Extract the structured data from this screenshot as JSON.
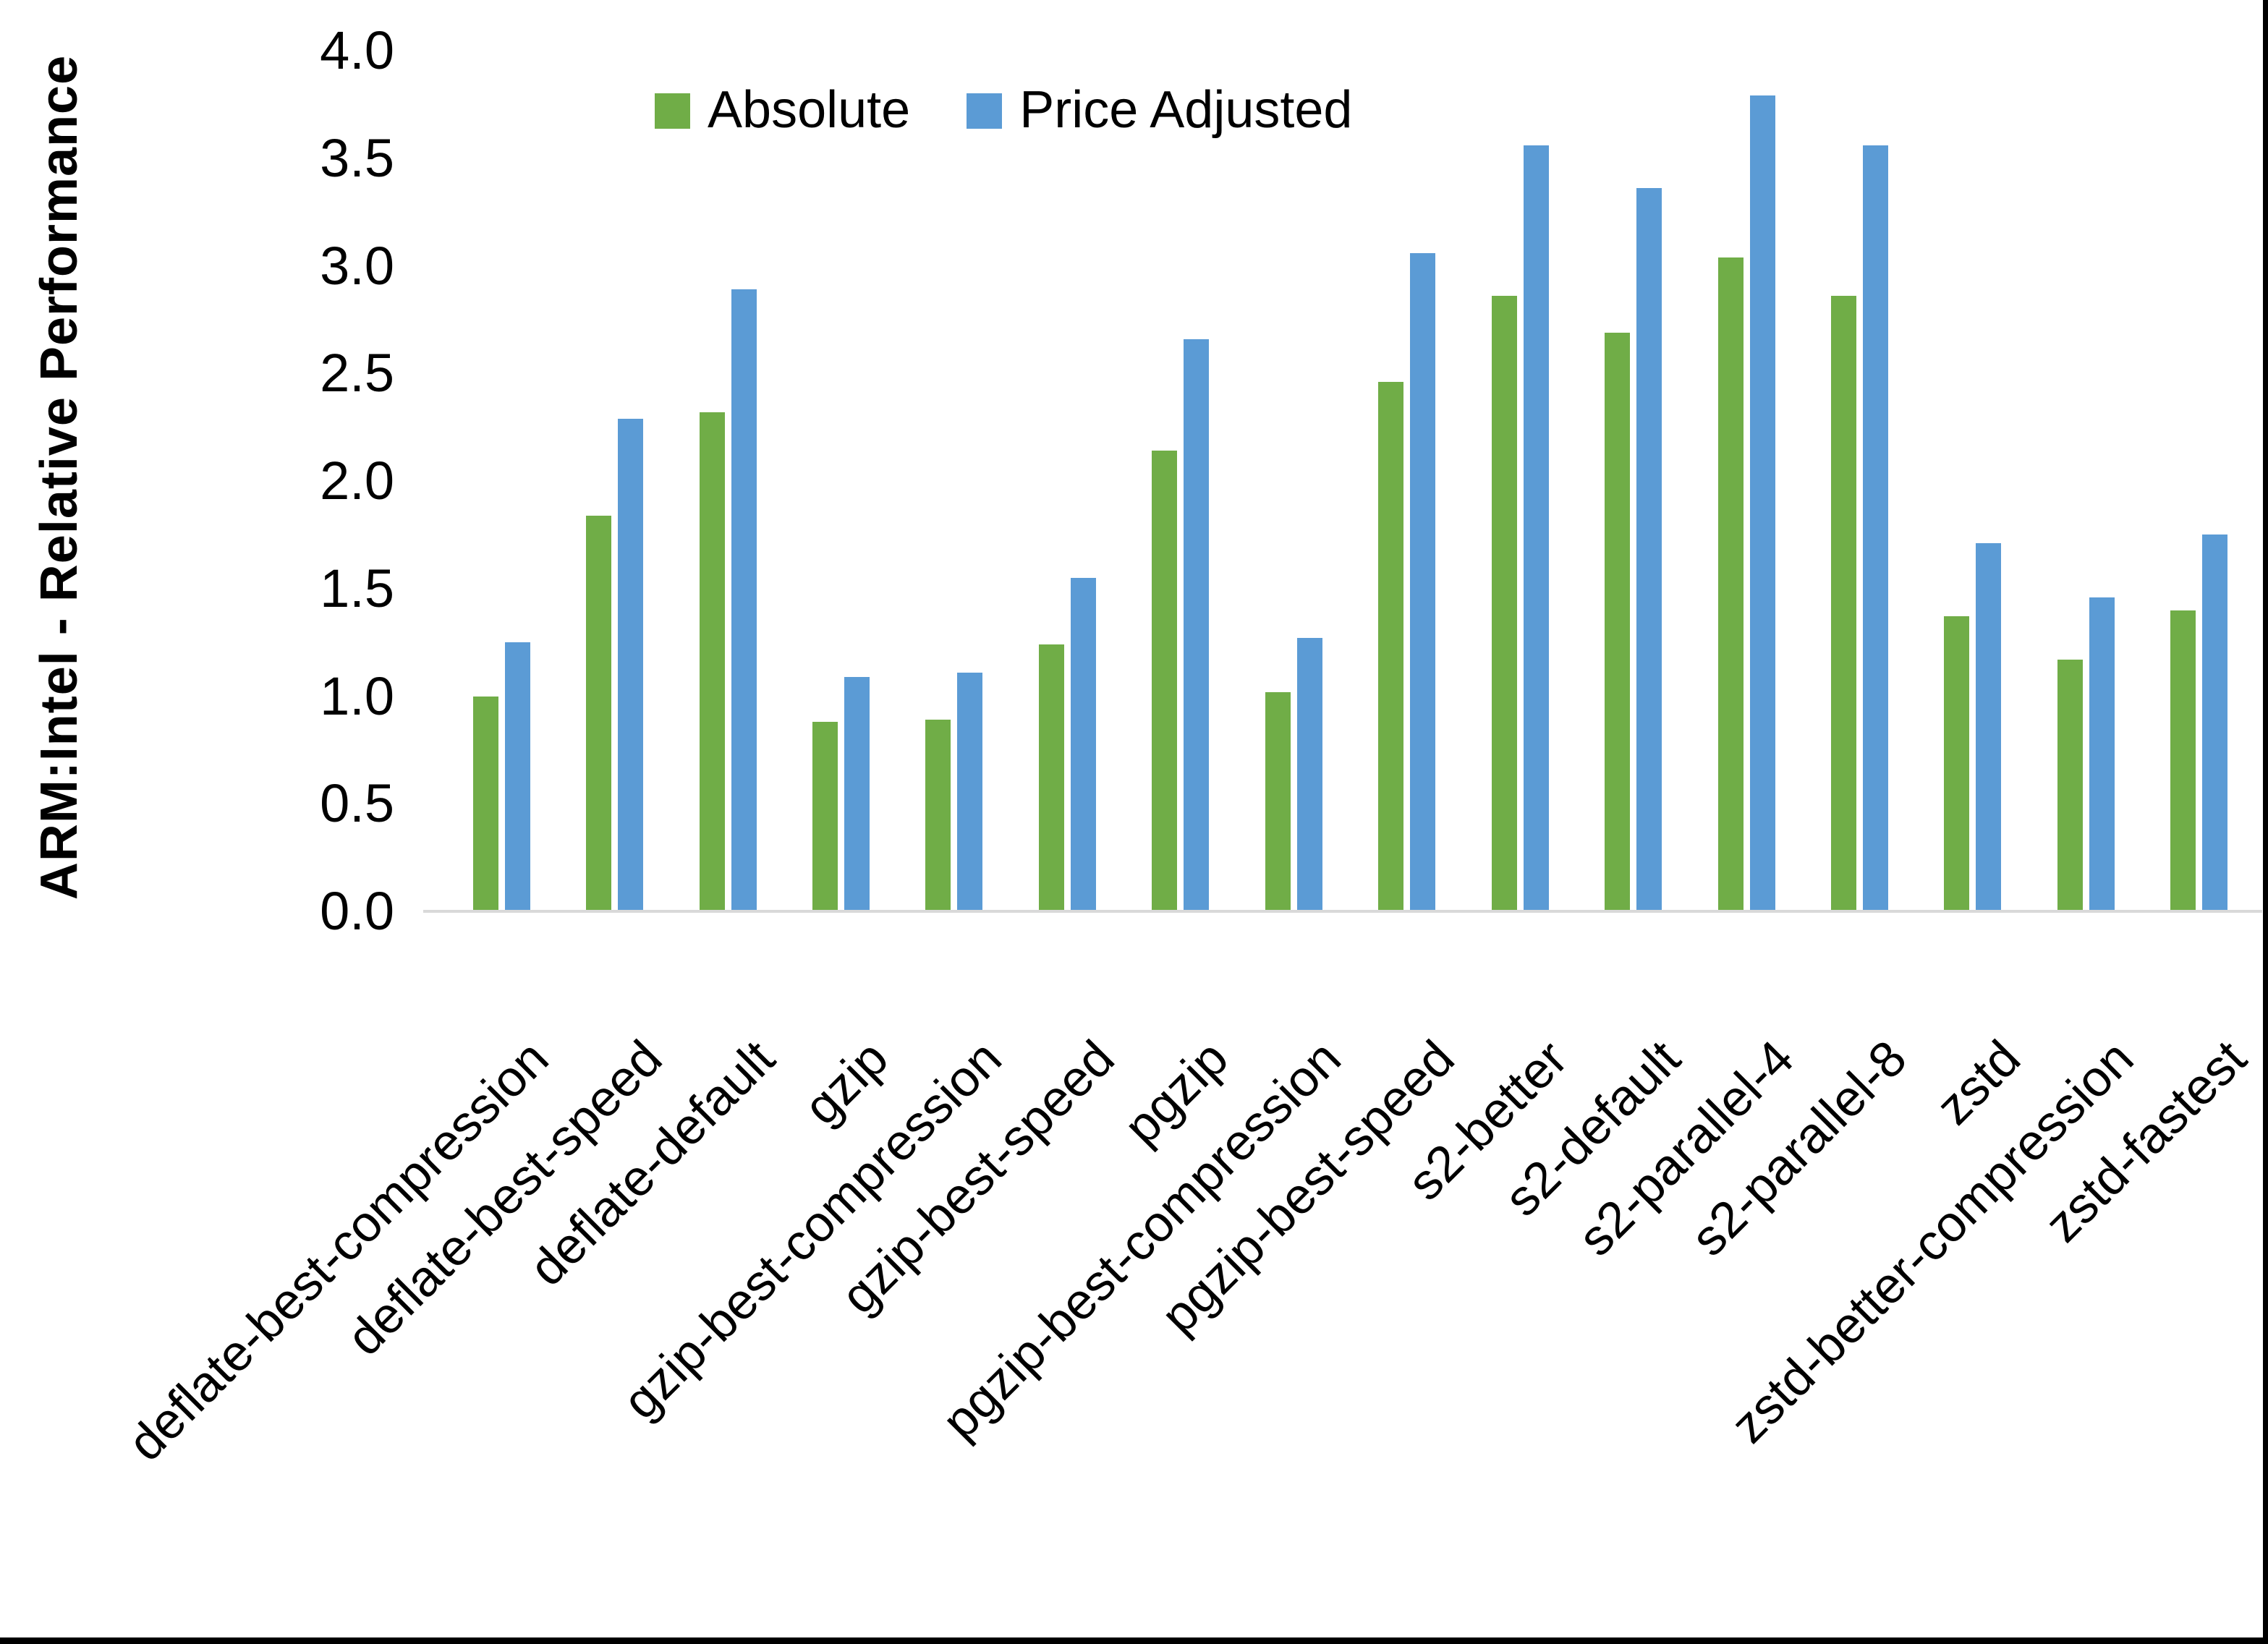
{
  "chart_data": {
    "type": "bar",
    "title": "",
    "xlabel": "",
    "ylabel": "ARM:Intel - Relative Performance",
    "ylim": [
      0.0,
      4.0
    ],
    "ytick_step": 0.5,
    "yticks": [
      "0.0",
      "0.5",
      "1.0",
      "1.5",
      "2.0",
      "2.5",
      "3.0",
      "3.5",
      "4.0"
    ],
    "grid": false,
    "legend_position": "top",
    "categories": [
      "deflate-best-compression",
      "deflate-best-speed",
      "deflate-default",
      "gzip",
      "gzip-best-compression",
      "gzip-best-speed",
      "pgzip",
      "pgzip-best-compression",
      "pgzip-best-speed",
      "s2-better",
      "s2-default",
      "s2-parallel-4",
      "s2-parallel-8",
      "zstd",
      "zstd-better-compression",
      "zstd-fastest"
    ],
    "series": [
      {
        "name": "Absolute",
        "color": "#70AD47",
        "values": [
          1.0,
          1.84,
          2.32,
          0.88,
          0.89,
          1.24,
          2.14,
          1.02,
          2.46,
          2.86,
          2.69,
          3.04,
          2.86,
          1.37,
          1.17,
          1.4
        ]
      },
      {
        "name": "Price Adjusted",
        "color": "#5B9BD5",
        "values": [
          1.25,
          2.29,
          2.89,
          1.09,
          1.11,
          1.55,
          2.66,
          1.27,
          3.06,
          3.56,
          3.36,
          3.79,
          3.56,
          1.71,
          1.46,
          1.75
        ]
      }
    ],
    "colors": {
      "axis_line": "#D9D9D9",
      "text": "#000000",
      "background": "#FFFFFF",
      "frame_border": "#000000"
    }
  }
}
